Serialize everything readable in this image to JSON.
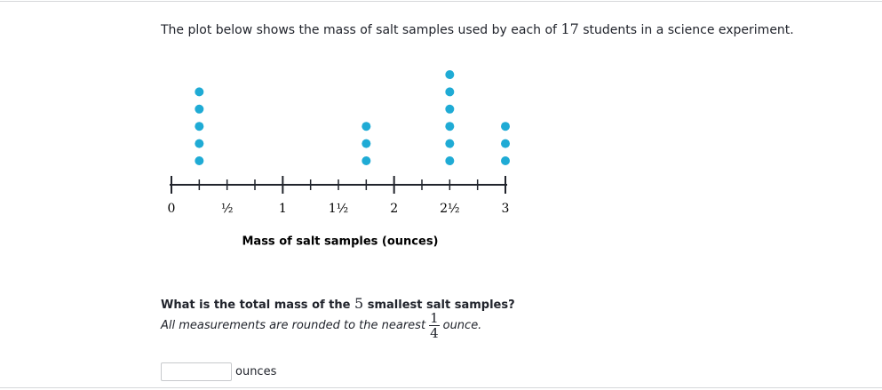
{
  "intro": {
    "before": "The plot below shows the mass of salt samples used by each of",
    "number": 17,
    "after": "students in a science experiment."
  },
  "chart_data": {
    "type": "dot",
    "x_label": "Mass of salt samples (ounces)",
    "x": [
      0.25,
      1.75,
      2.5,
      3
    ],
    "values": [
      5,
      3,
      6,
      3
    ],
    "color": "#1fabd5",
    "xlim": [
      0,
      3
    ],
    "xticks": [
      0,
      {
        "value": 0.5,
        "label": "½"
      },
      1,
      {
        "value": 1.5,
        "label": "1½"
      },
      2,
      {
        "value": 2.5,
        "label": "2½"
      },
      3
    ],
    "minor_xticks": [
      0.25,
      0.75,
      1.25,
      1.75,
      2.25,
      2.75
    ]
  },
  "question": {
    "before": "What is the total mass of the",
    "number": 5,
    "after": "smallest salt samples?"
  },
  "note": {
    "before": "All measurements are rounded to the nearest",
    "numerator": 1,
    "denominator": 4,
    "after": "ounce."
  },
  "answer_unit": "ounces"
}
